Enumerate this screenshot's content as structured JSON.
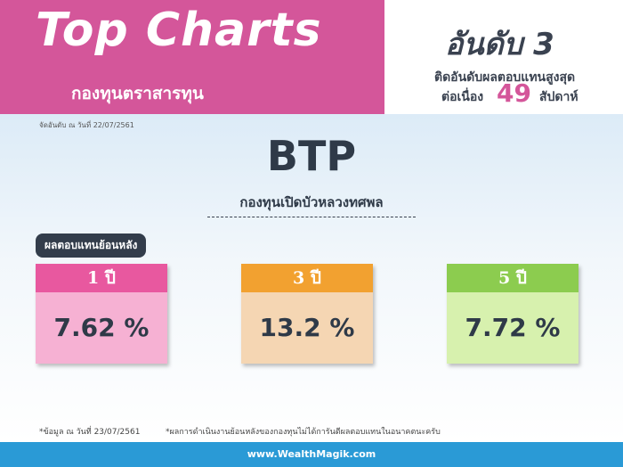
{
  "header": {
    "title": "Top Charts",
    "subtitle": "กองทุนตราสารทุน"
  },
  "rank": {
    "title": "อันดับ 3",
    "line1": "ติดอันดับผลตอบแทนสูงสุด",
    "line2_prefix": "ต่อเนื่อง",
    "weeks": "49",
    "line2_suffix": "สัปดาห์",
    "as_of": "จัดอันดับ ณ วันที่ 22/07/2561"
  },
  "fund": {
    "code": "BTP",
    "name": "กองทุนเปิดบัวหลวงทศพล"
  },
  "returns": {
    "label": "ผลตอบแทนย้อนหลัง",
    "cards": [
      {
        "period": "1 ปี",
        "value": "7.62 %",
        "color": "#e8589f"
      },
      {
        "period": "3 ปี",
        "value": "13.2 %",
        "color": "#f2a130"
      },
      {
        "period": "5 ปี",
        "value": "7.72 %",
        "color": "#8ccc4f"
      }
    ]
  },
  "footnotes": {
    "data_date": "*ข้อมูล ณ วันที่ 23/07/2561",
    "disclaimer": "*ผลการดำเนินงานย้อนหลังของกองทุนไม่ได้การันตีผลตอบแทนในอนาคตนะครับ"
  },
  "footer": {
    "website": "www.WealthMagik.com"
  },
  "colors": {
    "brand_pink": "#d4569a",
    "footer_blue": "#2a9ad6",
    "dark_text": "#2f3a48"
  }
}
